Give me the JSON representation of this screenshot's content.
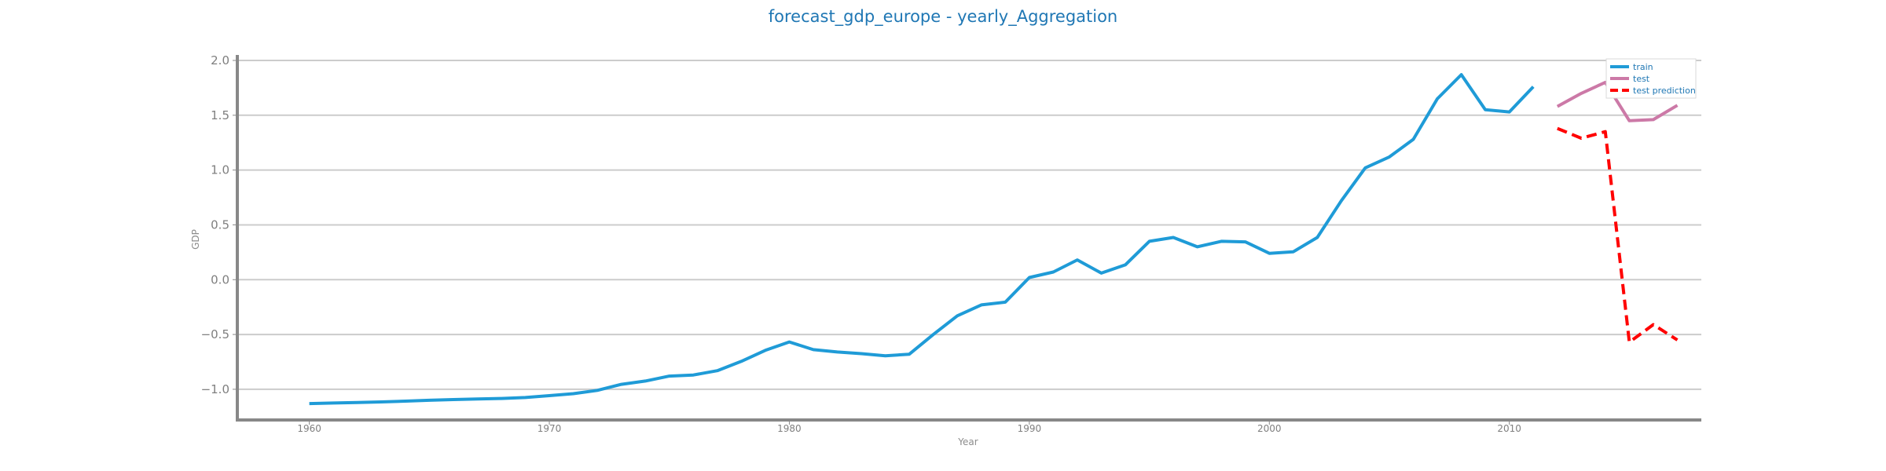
{
  "chart_data": {
    "type": "line",
    "title": "forecast_gdp_europe - yearly_Aggregation",
    "xlabel": "Year",
    "ylabel": "GDP",
    "xlim": [
      1957,
      2018
    ],
    "ylim": [
      -1.28,
      2.05
    ],
    "xticks": [
      1960,
      1970,
      1980,
      1990,
      2000,
      2010
    ],
    "yticks": [
      -1.0,
      -0.5,
      0.0,
      0.5,
      1.0,
      1.5,
      2.0
    ],
    "grid": "horizontal",
    "legend_position": "top-right",
    "series": [
      {
        "name": "train",
        "color": "#1f9bd7",
        "style": "solid",
        "x": [
          1960,
          1961,
          1962,
          1963,
          1964,
          1965,
          1966,
          1967,
          1968,
          1969,
          1970,
          1971,
          1972,
          1973,
          1974,
          1975,
          1976,
          1977,
          1978,
          1979,
          1980,
          1981,
          1982,
          1983,
          1984,
          1985,
          1986,
          1987,
          1988,
          1989,
          1990,
          1991,
          1992,
          1993,
          1994,
          1995,
          1996,
          1997,
          1998,
          1999,
          2000,
          2001,
          2002,
          2003,
          2004,
          2005,
          2006,
          2007,
          2008,
          2009,
          2010,
          2011
        ],
        "y": [
          -1.13,
          -1.125,
          -1.12,
          -1.115,
          -1.108,
          -1.1,
          -1.094,
          -1.088,
          -1.084,
          -1.075,
          -1.058,
          -1.04,
          -1.01,
          -0.955,
          -0.925,
          -0.88,
          -0.87,
          -0.83,
          -0.745,
          -0.645,
          -0.568,
          -0.638,
          -0.66,
          -0.675,
          -0.695,
          -0.68,
          -0.5,
          -0.33,
          -0.23,
          -0.205,
          0.02,
          0.07,
          0.18,
          0.06,
          0.135,
          0.35,
          0.385,
          0.3,
          0.35,
          0.345,
          0.24,
          0.255,
          0.385,
          0.72,
          1.02,
          1.12,
          1.28,
          1.65,
          1.87,
          1.55,
          1.53,
          1.76
        ]
      },
      {
        "name": "test",
        "color": "#cc79a7",
        "style": "solid",
        "x": [
          2012,
          2013,
          2014,
          2015,
          2016,
          2017
        ],
        "y": [
          1.58,
          1.7,
          1.8,
          1.45,
          1.46,
          1.59
        ]
      },
      {
        "name": "test prediction",
        "color": "#ff0000",
        "style": "dashed",
        "x": [
          2012,
          2013,
          2014,
          2015,
          2016,
          2017
        ],
        "y": [
          1.38,
          1.29,
          1.35,
          -0.57,
          -0.41,
          -0.55
        ]
      }
    ]
  }
}
